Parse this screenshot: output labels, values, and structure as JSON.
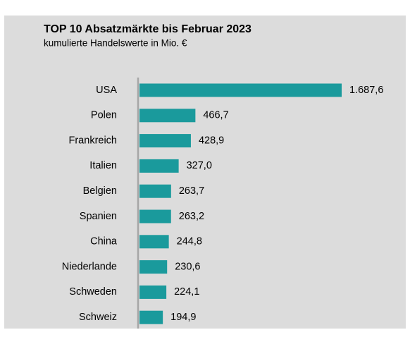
{
  "chart_data": {
    "type": "bar",
    "orientation": "horizontal",
    "title": "TOP 10 Absatzmärkte bis Februar 2023",
    "subtitle": "kumulierte Handelswerte in Mio. €",
    "categories": [
      "USA",
      "Polen",
      "Frankreich",
      "Italien",
      "Belgien",
      "Spanien",
      "China",
      "Niederlande",
      "Schweden",
      "Schweiz"
    ],
    "values": [
      1687.6,
      466.7,
      428.9,
      327.0,
      263.7,
      263.2,
      244.8,
      230.6,
      224.1,
      194.9
    ],
    "value_labels": [
      "1.687,6",
      "466,7",
      "428,9",
      "327,0",
      "263,7",
      "263,2",
      "244,8",
      "230,6",
      "224,1",
      "194,9"
    ],
    "color": "#1a9a9c"
  }
}
